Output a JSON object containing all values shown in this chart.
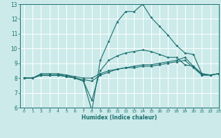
{
  "title": "",
  "xlabel": "Humidex (Indice chaleur)",
  "ylabel": "",
  "bg_color": "#cceaea",
  "grid_color": "#ffffff",
  "line_color": "#1a6e6e",
  "xlim": [
    -0.5,
    23
  ],
  "ylim": [
    6,
    13
  ],
  "xticks": [
    0,
    1,
    2,
    3,
    4,
    5,
    6,
    7,
    8,
    9,
    10,
    11,
    12,
    13,
    14,
    15,
    16,
    17,
    18,
    19,
    20,
    21,
    22,
    23
  ],
  "yticks": [
    6,
    7,
    8,
    9,
    10,
    11,
    12,
    13
  ],
  "lines": [
    {
      "x": [
        0,
        1,
        2,
        3,
        4,
        5,
        6,
        7,
        8,
        9,
        10,
        11,
        12,
        13,
        14,
        15,
        16,
        17,
        18,
        19,
        20,
        21,
        22,
        23
      ],
      "y": [
        8.0,
        8.0,
        8.3,
        8.3,
        8.3,
        8.2,
        8.0,
        7.8,
        5.8,
        9.2,
        10.5,
        11.8,
        12.5,
        12.5,
        13.0,
        12.1,
        11.5,
        10.9,
        10.2,
        9.7,
        9.6,
        8.3,
        8.2,
        8.3
      ]
    },
    {
      "x": [
        0,
        1,
        2,
        3,
        4,
        5,
        6,
        7,
        8,
        9,
        10,
        11,
        12,
        13,
        14,
        15,
        16,
        17,
        18,
        19,
        20,
        21,
        22,
        23
      ],
      "y": [
        8.0,
        8.0,
        8.2,
        8.2,
        8.2,
        8.2,
        8.1,
        8.0,
        8.0,
        8.3,
        8.5,
        8.6,
        8.7,
        8.8,
        8.9,
        8.9,
        9.0,
        9.1,
        9.2,
        9.4,
        8.8,
        8.2,
        8.2,
        8.3
      ]
    },
    {
      "x": [
        0,
        1,
        2,
        3,
        4,
        5,
        6,
        7,
        8,
        9,
        10,
        11,
        12,
        13,
        14,
        15,
        16,
        17,
        18,
        19,
        20,
        21,
        22,
        23
      ],
      "y": [
        8.0,
        8.0,
        8.2,
        8.2,
        8.2,
        8.1,
        8.0,
        7.8,
        6.5,
        8.5,
        9.2,
        9.5,
        9.7,
        9.8,
        9.9,
        9.8,
        9.6,
        9.4,
        9.4,
        8.9,
        8.8,
        8.3,
        8.2,
        8.3
      ]
    },
    {
      "x": [
        0,
        1,
        2,
        3,
        4,
        5,
        6,
        7,
        8,
        9,
        10,
        11,
        12,
        13,
        14,
        15,
        16,
        17,
        18,
        19,
        20,
        21,
        22,
        23
      ],
      "y": [
        8.0,
        8.0,
        8.2,
        8.2,
        8.2,
        8.1,
        8.0,
        7.9,
        7.8,
        8.2,
        8.4,
        8.6,
        8.7,
        8.7,
        8.8,
        8.8,
        8.9,
        9.0,
        9.1,
        9.2,
        8.7,
        8.2,
        8.2,
        8.3
      ]
    }
  ]
}
